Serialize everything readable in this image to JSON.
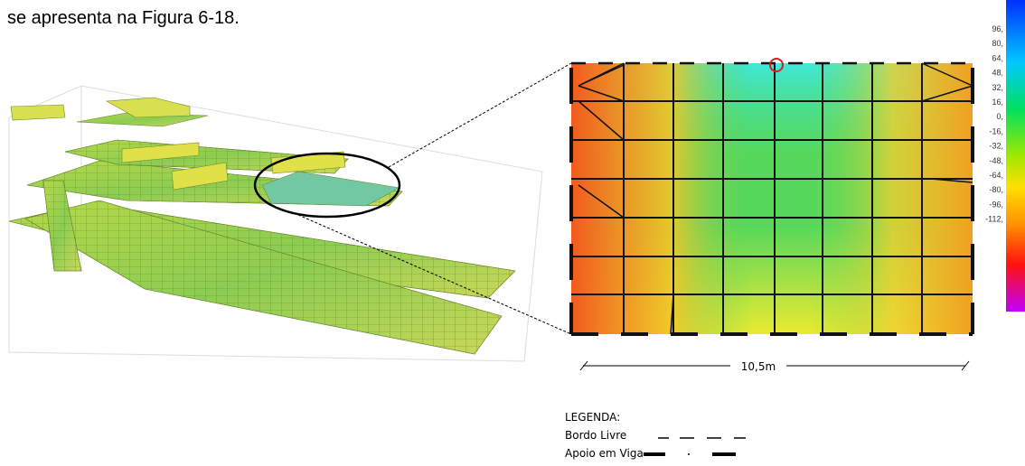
{
  "caption": "se apresenta na Figura 6-18.",
  "colorbar": {
    "labels": [
      "96,",
      "80,",
      "64,",
      "48,",
      "32,",
      "16,",
      "0,",
      "-16,",
      "-32,",
      "-48,",
      "-64,",
      "-80,",
      "-96,",
      "-112,"
    ]
  },
  "dimension": "10,5m",
  "legend": {
    "title": "LEGENDA:",
    "items": [
      "Bordo  Livre",
      "Apoio  em  Viga"
    ]
  }
}
